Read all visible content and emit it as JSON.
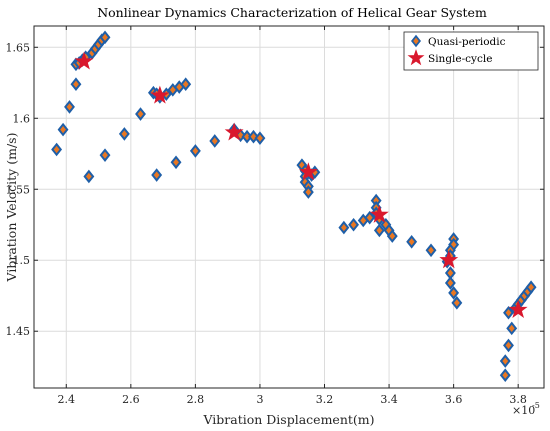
{
  "chart_data": {
    "type": "scatter",
    "title": "Nonlinear Dynamics Characterization of Helical Gear System",
    "xlabel": "Vibration Displacement(m)",
    "ylabel": "Vibration Velocity (m/s)",
    "x_exponent_label": "×10",
    "x_exponent_value": "-5",
    "xlim": [
      2.3,
      3.88
    ],
    "ylim": [
      1.41,
      1.665
    ],
    "xticks": [
      2.4,
      2.6,
      2.8,
      3.0,
      3.2,
      3.4,
      3.6,
      3.8
    ],
    "xtick_labels": [
      "2.4",
      "2.6",
      "2.8",
      "3",
      "3.2",
      "3.4",
      "3.6",
      "3.8"
    ],
    "yticks": [
      1.45,
      1.5,
      1.55,
      1.6,
      1.65
    ],
    "ytick_labels": [
      "1.45",
      "1.5",
      "1.55",
      "1.6",
      "1.65"
    ],
    "grid": true,
    "legend_position": "top-right",
    "series": [
      {
        "name": "Quasi-periodic",
        "marker": "diamond",
        "fill_color": "#e87722",
        "edge_color": "#1f5fa8",
        "points": [
          [
            2.37,
            1.578
          ],
          [
            2.39,
            1.592
          ],
          [
            2.41,
            1.608
          ],
          [
            2.43,
            1.624
          ],
          [
            2.43,
            1.638
          ],
          [
            2.44,
            1.639
          ],
          [
            2.45,
            1.641
          ],
          [
            2.46,
            1.643
          ],
          [
            2.48,
            1.646
          ],
          [
            2.49,
            1.649
          ],
          [
            2.5,
            1.652
          ],
          [
            2.51,
            1.655
          ],
          [
            2.52,
            1.657
          ],
          [
            2.47,
            1.559
          ],
          [
            2.52,
            1.574
          ],
          [
            2.58,
            1.589
          ],
          [
            2.63,
            1.603
          ],
          [
            2.67,
            1.618
          ],
          [
            2.68,
            1.617
          ],
          [
            2.69,
            1.615
          ],
          [
            2.71,
            1.617
          ],
          [
            2.73,
            1.62
          ],
          [
            2.75,
            1.622
          ],
          [
            2.77,
            1.624
          ],
          [
            2.68,
            1.56
          ],
          [
            2.74,
            1.569
          ],
          [
            2.8,
            1.577
          ],
          [
            2.86,
            1.584
          ],
          [
            2.92,
            1.592
          ],
          [
            2.94,
            1.588
          ],
          [
            2.96,
            1.587
          ],
          [
            2.98,
            1.587
          ],
          [
            3.0,
            1.586
          ],
          [
            3.13,
            1.567
          ],
          [
            3.14,
            1.563
          ],
          [
            3.14,
            1.559
          ],
          [
            3.14,
            1.555
          ],
          [
            3.15,
            1.552
          ],
          [
            3.15,
            1.548
          ],
          [
            3.16,
            1.56
          ],
          [
            3.17,
            1.562
          ],
          [
            3.26,
            1.523
          ],
          [
            3.29,
            1.525
          ],
          [
            3.32,
            1.528
          ],
          [
            3.34,
            1.53
          ],
          [
            3.36,
            1.542
          ],
          [
            3.36,
            1.537
          ],
          [
            3.36,
            1.533
          ],
          [
            3.37,
            1.529
          ],
          [
            3.37,
            1.521
          ],
          [
            3.39,
            1.525
          ],
          [
            3.4,
            1.521
          ],
          [
            3.41,
            1.517
          ],
          [
            3.47,
            1.513
          ],
          [
            3.53,
            1.507
          ],
          [
            3.58,
            1.499
          ],
          [
            3.59,
            1.491
          ],
          [
            3.59,
            1.484
          ],
          [
            3.6,
            1.477
          ],
          [
            3.61,
            1.47
          ],
          [
            3.6,
            1.515
          ],
          [
            3.6,
            1.511
          ],
          [
            3.59,
            1.507
          ],
          [
            3.59,
            1.503
          ],
          [
            3.76,
            1.419
          ],
          [
            3.76,
            1.429
          ],
          [
            3.77,
            1.44
          ],
          [
            3.78,
            1.452
          ],
          [
            3.77,
            1.463
          ],
          [
            3.79,
            1.466
          ],
          [
            3.8,
            1.469
          ],
          [
            3.81,
            1.472
          ],
          [
            3.82,
            1.475
          ],
          [
            3.83,
            1.478
          ],
          [
            3.84,
            1.481
          ]
        ]
      },
      {
        "name": "Single-cycle",
        "marker": "star",
        "fill_color": "#d9182d",
        "edge_color": "#d9182d",
        "points": [
          [
            2.455,
            1.64
          ],
          [
            2.69,
            1.616
          ],
          [
            2.92,
            1.59
          ],
          [
            3.15,
            1.562
          ],
          [
            3.37,
            1.532
          ],
          [
            3.585,
            1.5
          ],
          [
            3.8,
            1.465
          ]
        ]
      }
    ]
  }
}
